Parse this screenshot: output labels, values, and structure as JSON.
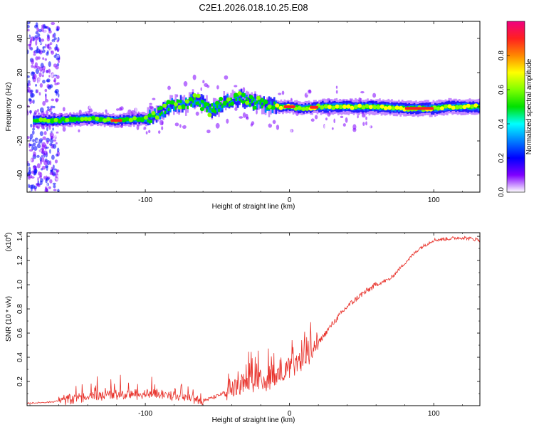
{
  "title": "C2E1.2026.018.10.25.E08",
  "colors": {
    "snr_line": "#e8312a",
    "frame": "#000000",
    "colorbar": [
      "#f00080",
      "#ff2020",
      "#ff8800",
      "#ffff00",
      "#80ff00",
      "#00e000",
      "#00ffff",
      "#0080ff",
      "#0000ff",
      "#8000ff",
      "#ffffff"
    ]
  },
  "chart_data": [
    {
      "type": "heatmap",
      "name": "spectrogram",
      "xlabel": "Height of straight line (km)",
      "ylabel": "Frequency (Hz)",
      "xlim": [
        -182,
        132
      ],
      "ylim": [
        -50,
        50
      ],
      "xticks": [
        -100,
        0,
        100
      ],
      "yticks": [
        -40,
        -20,
        0,
        20,
        40
      ],
      "colorbar": {
        "label": "Normalized spectral amplitude",
        "range": [
          0.0,
          1.0
        ],
        "ticks": [
          0.0,
          0.2,
          0.4,
          0.6,
          0.8
        ]
      },
      "ridge": {
        "description": "dominant frequency ridge versus height",
        "points": [
          [
            -178,
            -8
          ],
          [
            -160,
            -8
          ],
          [
            -140,
            -7
          ],
          [
            -120,
            -8
          ],
          [
            -100,
            -7
          ],
          [
            -90,
            -3
          ],
          [
            -80,
            2
          ],
          [
            -72,
            1
          ],
          [
            -65,
            5
          ],
          [
            -55,
            -2
          ],
          [
            -45,
            3
          ],
          [
            -35,
            5
          ],
          [
            -25,
            3
          ],
          [
            -18,
            1
          ],
          [
            -10,
            0
          ],
          [
            0,
            0
          ],
          [
            10,
            -1
          ],
          [
            20,
            0
          ],
          [
            40,
            0
          ],
          [
            60,
            0
          ],
          [
            80,
            -1
          ],
          [
            100,
            -1
          ],
          [
            110,
            0
          ],
          [
            130,
            0
          ]
        ]
      }
    },
    {
      "type": "line",
      "name": "snr",
      "xlabel": "Height of straight line (km)",
      "ylabel": "SNR (10 * v/v)",
      "multiplier_label": "(x10",
      "multiplier_exp": "4",
      "xlim": [
        -182,
        132
      ],
      "ylim": [
        0.0,
        1.43
      ],
      "xticks": [
        -100,
        0,
        100
      ],
      "yticks": [
        0.2,
        0.4,
        0.6,
        0.8,
        1.0,
        1.2,
        1.4
      ],
      "ytick_labels": [
        "0.2",
        "0.4",
        "0.6",
        "0.8",
        "1.0",
        "1.2",
        "1.4"
      ],
      "trend": [
        [
          -182,
          0.02
        ],
        [
          -165,
          0.03
        ],
        [
          -150,
          0.06
        ],
        [
          -130,
          0.09
        ],
        [
          -110,
          0.09
        ],
        [
          -90,
          0.1
        ],
        [
          -75,
          0.08
        ],
        [
          -60,
          0.04
        ],
        [
          -50,
          0.08
        ],
        [
          -40,
          0.14
        ],
        [
          -30,
          0.18
        ],
        [
          -20,
          0.2
        ],
        [
          -10,
          0.25
        ],
        [
          0,
          0.3
        ],
        [
          10,
          0.38
        ],
        [
          20,
          0.52
        ],
        [
          30,
          0.68
        ],
        [
          40,
          0.82
        ],
        [
          50,
          0.92
        ],
        [
          60,
          1.0
        ],
        [
          70,
          1.05
        ],
        [
          80,
          1.18
        ],
        [
          90,
          1.3
        ],
        [
          100,
          1.37
        ],
        [
          110,
          1.38
        ],
        [
          120,
          1.39
        ],
        [
          132,
          1.37
        ]
      ]
    }
  ]
}
